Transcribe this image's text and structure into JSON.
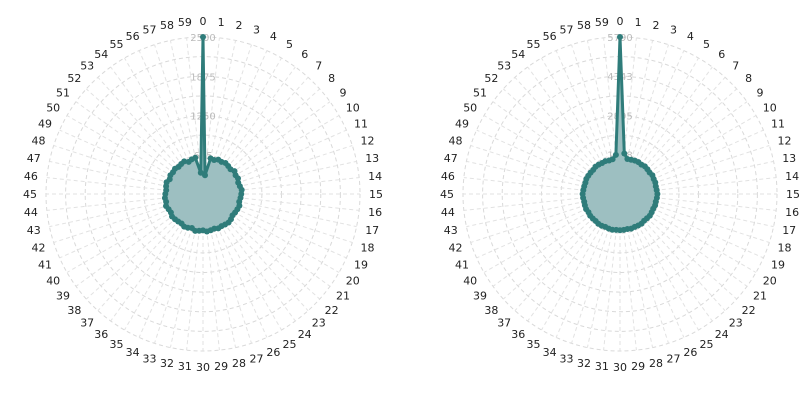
{
  "chart_data": [
    {
      "type": "radar",
      "title": "",
      "angle_labels": [
        "0",
        "1",
        "2",
        "3",
        "4",
        "5",
        "6",
        "7",
        "8",
        "9",
        "10",
        "11",
        "12",
        "13",
        "14",
        "15",
        "16",
        "17",
        "18",
        "19",
        "20",
        "21",
        "22",
        "23",
        "24",
        "25",
        "26",
        "27",
        "28",
        "29",
        "30",
        "31",
        "32",
        "33",
        "34",
        "35",
        "36",
        "37",
        "38",
        "39",
        "40",
        "41",
        "42",
        "43",
        "44",
        "45",
        "46",
        "47",
        "48",
        "49",
        "50",
        "51",
        "52",
        "53",
        "54",
        "55",
        "56",
        "57",
        "58",
        "59"
      ],
      "radial_ticks": [
        0,
        625,
        1250,
        1875,
        2500
      ],
      "radial_tick_labels": [
        "0",
        "625",
        "1250",
        "1875",
        "2500"
      ],
      "rlim": [
        0,
        2500
      ],
      "grid": true,
      "fill_color": "#9dbfc1",
      "line_color": "#2f7c7a",
      "series": [
        {
          "values": [
            2500,
            300,
            580,
            570,
            600,
            590,
            610,
            600,
            590,
            620,
            600,
            610,
            590,
            600,
            620,
            610,
            600,
            590,
            610,
            600,
            590,
            580,
            600,
            610,
            600,
            590,
            600,
            580,
            590,
            600,
            580,
            590,
            600,
            570,
            590,
            600,
            580,
            590,
            600,
            610,
            590,
            600,
            620,
            600,
            610,
            600,
            590,
            600,
            610,
            580,
            600,
            590,
            600,
            580,
            590,
            600,
            560,
            580,
            590,
            340
          ]
        }
      ]
    },
    {
      "type": "radar",
      "title": "",
      "angle_labels": [
        "0",
        "1",
        "2",
        "3",
        "4",
        "5",
        "6",
        "7",
        "8",
        "9",
        "10",
        "11",
        "12",
        "13",
        "14",
        "15",
        "16",
        "17",
        "18",
        "19",
        "20",
        "21",
        "22",
        "23",
        "24",
        "25",
        "26",
        "27",
        "28",
        "29",
        "30",
        "31",
        "32",
        "33",
        "34",
        "35",
        "36",
        "37",
        "38",
        "39",
        "40",
        "41",
        "42",
        "43",
        "44",
        "45",
        "46",
        "47",
        "48",
        "49",
        "50",
        "51",
        "52",
        "53",
        "54",
        "55",
        "56",
        "57",
        "58",
        "59"
      ],
      "radial_ticks": [
        0,
        1448,
        2895,
        4343,
        5790
      ],
      "radial_tick_labels": [
        "0",
        "1448",
        "2895",
        "4343",
        "5790"
      ],
      "rlim": [
        0,
        5790
      ],
      "grid": true,
      "fill_color": "#9dbfc1",
      "line_color": "#2f7c7a",
      "series": [
        {
          "values": [
            5790,
            1500,
            1320,
            1330,
            1350,
            1360,
            1340,
            1370,
            1360,
            1350,
            1380,
            1360,
            1370,
            1350,
            1360,
            1380,
            1370,
            1350,
            1360,
            1340,
            1350,
            1360,
            1340,
            1330,
            1350,
            1340,
            1330,
            1340,
            1320,
            1330,
            1340,
            1330,
            1350,
            1340,
            1330,
            1350,
            1360,
            1340,
            1350,
            1360,
            1340,
            1370,
            1360,
            1350,
            1370,
            1380,
            1360,
            1350,
            1340,
            1360,
            1350,
            1340,
            1330,
            1350,
            1340,
            1320,
            1330,
            1300,
            1310,
            1450
          ]
        }
      ]
    }
  ]
}
